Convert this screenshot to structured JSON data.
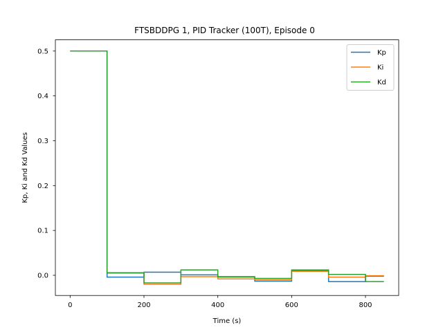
{
  "chart_data": {
    "type": "line",
    "step": true,
    "title": "FTSBDDPG 1, PID Tracker (100T), Episode 0",
    "xlabel": "Time (s)",
    "ylabel": "Kp, Ki and Kd Values",
    "xlim": [
      -40,
      890
    ],
    "ylim": [
      -0.045,
      0.525
    ],
    "xticks": [
      0,
      200,
      400,
      600,
      800
    ],
    "xtick_labels": [
      "0",
      "200",
      "400",
      "600",
      "800"
    ],
    "yticks": [
      0.0,
      0.1,
      0.2,
      0.3,
      0.4,
      0.5
    ],
    "ytick_labels": [
      "0.0",
      "0.1",
      "0.2",
      "0.3",
      "0.4",
      "0.5"
    ],
    "grid": false,
    "legend_position": "top-right",
    "series": [
      {
        "name": "Kp",
        "color": "#1f77b4",
        "x": [
          0,
          100,
          200,
          300,
          400,
          500,
          600,
          700,
          800,
          850
        ],
        "y": [
          0.5,
          -0.004,
          0.007,
          0.001,
          -0.003,
          -0.013,
          0.01,
          -0.014,
          -0.002,
          -0.002
        ]
      },
      {
        "name": "Ki",
        "color": "#ff7f0e",
        "x": [
          0,
          100,
          200,
          300,
          400,
          500,
          600,
          700,
          800,
          850
        ],
        "y": [
          0.5,
          0.006,
          -0.02,
          -0.003,
          -0.008,
          -0.01,
          0.009,
          -0.004,
          -0.001,
          -0.001
        ]
      },
      {
        "name": "Kd",
        "color": "#2ca02c",
        "x": [
          0,
          100,
          200,
          300,
          400,
          500,
          600,
          700,
          800,
          850
        ],
        "y": [
          0.5,
          0.005,
          -0.017,
          0.012,
          -0.004,
          -0.007,
          0.012,
          0.002,
          -0.014,
          -0.014
        ]
      }
    ]
  }
}
